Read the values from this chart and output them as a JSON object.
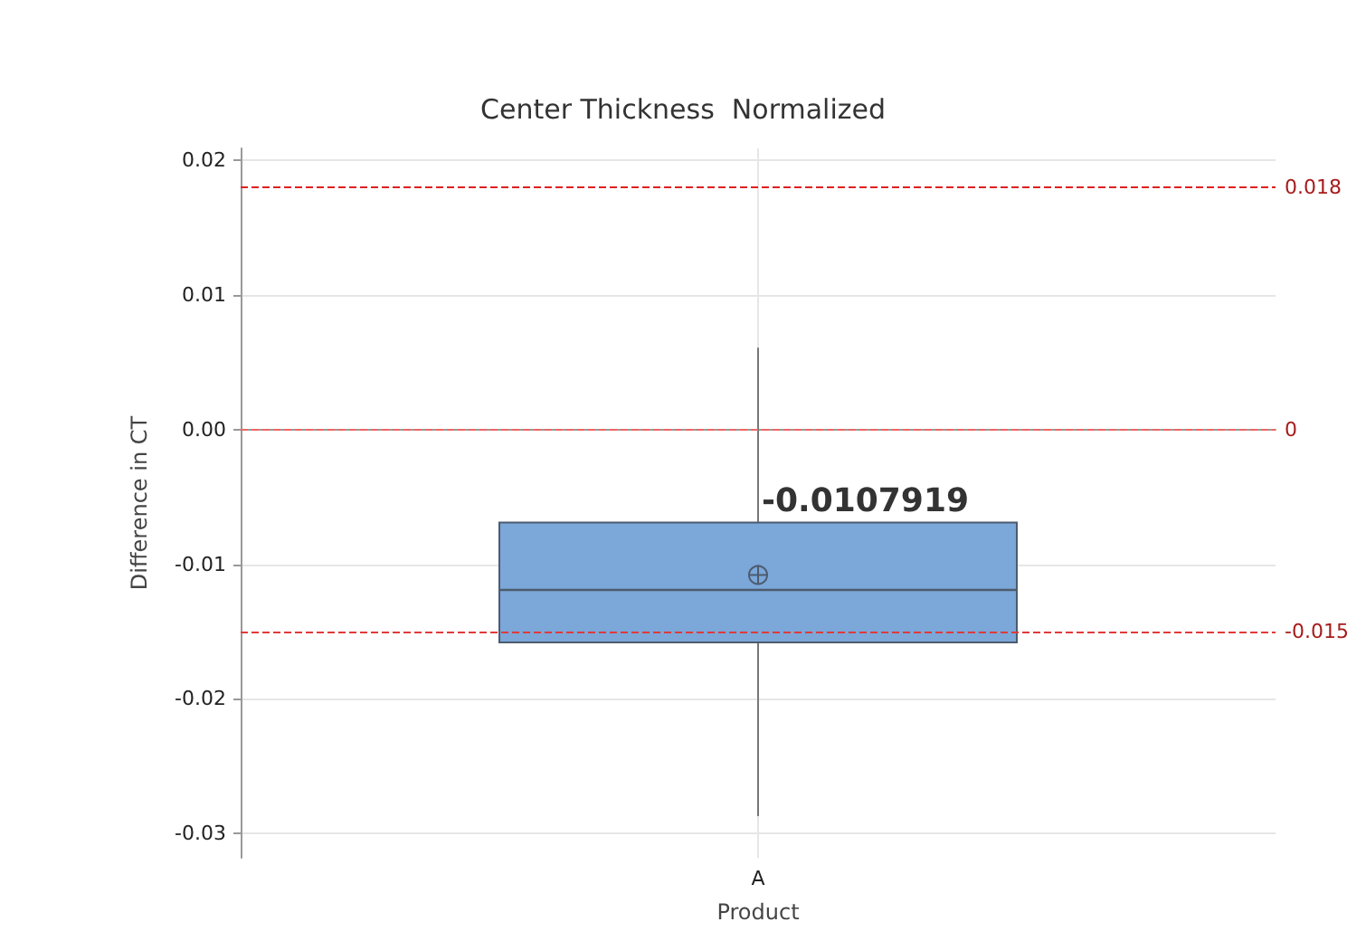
{
  "chart_data": {
    "type": "box",
    "title": "Center Thickness  Normalized",
    "xlabel": "Product",
    "ylabel": "Difference in CT",
    "categories": [
      "A"
    ],
    "boxes": [
      {
        "low": -0.0287,
        "q1": -0.0158,
        "median": -0.0119,
        "q3": -0.0069,
        "high": 0.0061,
        "mean": -0.0107919
      }
    ],
    "color": "#7ba7d9",
    "ylim": [
      -0.0318,
      0.0209
    ],
    "yticks": [
      {
        "value": -0.03,
        "label": "-0.03"
      },
      {
        "value": -0.02,
        "label": "-0.02"
      },
      {
        "value": -0.01,
        "label": "-0.01"
      },
      {
        "value": 0,
        "label": "0.00"
      },
      {
        "value": 0.01,
        "label": "0.01"
      },
      {
        "value": 0.02,
        "label": "0.02"
      }
    ],
    "ref_lines": [
      {
        "axis": "y",
        "value": 0.018,
        "label": "0.018",
        "color": "#e02020",
        "line_style": "dashed"
      },
      {
        "axis": "y",
        "value": 0,
        "label": "0",
        "color": "#ee6666",
        "line_style": "dashed"
      },
      {
        "axis": "y",
        "value": -0.015,
        "label": "-0.015",
        "color": "#e03a3a",
        "line_style": "dashed"
      }
    ],
    "annotations": [
      "-0.0107919"
    ],
    "grid": true
  }
}
